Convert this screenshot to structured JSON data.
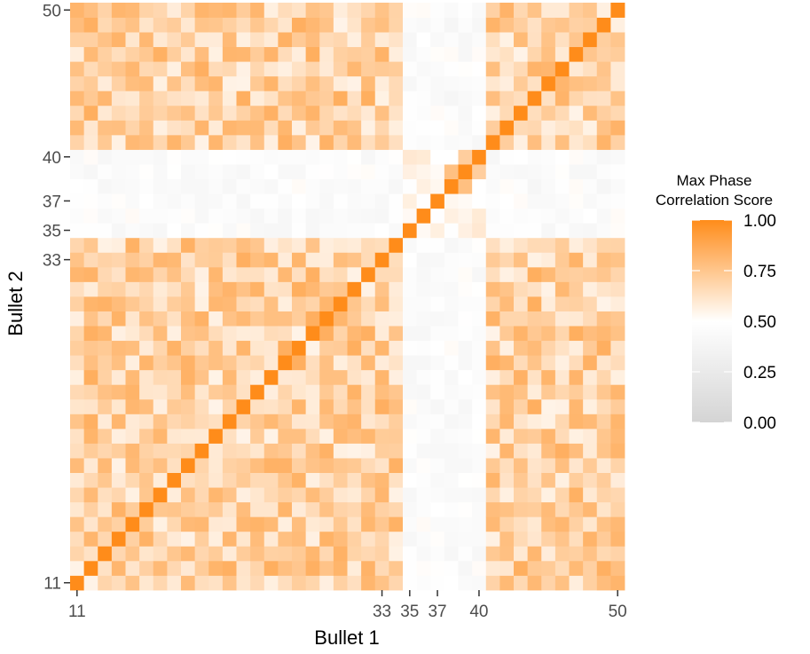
{
  "chart_data": {
    "type": "heatmap",
    "title": "",
    "xlabel": "Bullet 1",
    "ylabel": "Bullet 2",
    "x_range": [
      11,
      50
    ],
    "y_range": [
      11,
      50
    ],
    "x_ticks": [
      11,
      33,
      35,
      37,
      40,
      50
    ],
    "y_ticks": [
      11,
      33,
      35,
      37,
      40,
      50
    ],
    "low_groups": [
      35,
      36,
      37,
      38,
      39,
      40
    ],
    "value_ranges": {
      "diagonal": 1.0,
      "within_low_group_adjacent": [
        0.7,
        0.82
      ],
      "high_group_pairs": [
        0.55,
        0.85
      ],
      "low_high_pairs": [
        0.4,
        0.52
      ]
    },
    "legend": {
      "title": [
        "Max Phase",
        "Correlation Score"
      ],
      "ticks": [
        "1.00",
        "0.75",
        "0.50",
        "0.25",
        "0.00"
      ],
      "tick_values": [
        1.0,
        0.75,
        0.5,
        0.25,
        0.0
      ],
      "placement": "right"
    },
    "color_scale": {
      "low": "#d4d4d4",
      "mid": "#ffffff",
      "high": "#ff8c1a",
      "midpoint": 0.5,
      "limits": [
        0,
        1
      ]
    }
  }
}
